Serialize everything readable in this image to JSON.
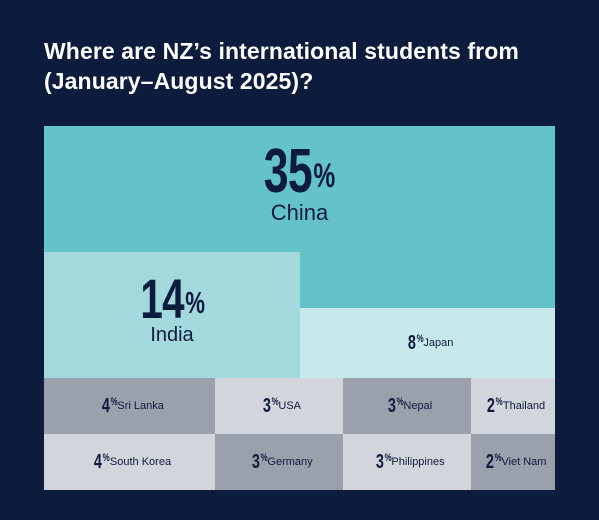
{
  "title": "Where are NZ’s international students from (January–August 2025)?",
  "chart_data": {
    "type": "treemap",
    "unit": "%",
    "items": [
      {
        "label": "China",
        "value": 35,
        "color": "#64c3c9"
      },
      {
        "label": "India",
        "value": 14,
        "color": "#a3d8dd"
      },
      {
        "label": "Japan",
        "value": 8,
        "color": "#c8e9ec"
      },
      {
        "label": "Sri Lanka",
        "value": 4,
        "color": "#9aa1ad"
      },
      {
        "label": "USA",
        "value": 3,
        "color": "#d3d5dc"
      },
      {
        "label": "Nepal",
        "value": 3,
        "color": "#9aa1ad"
      },
      {
        "label": "Thailand",
        "value": 2,
        "color": "#d3d5dc"
      },
      {
        "label": "South Korea",
        "value": 4,
        "color": "#d3d5dc"
      },
      {
        "label": "Germany",
        "value": 3,
        "color": "#9aa1ad"
      },
      {
        "label": "Philippines",
        "value": 3,
        "color": "#d3d5dc"
      },
      {
        "label": "Viet Nam",
        "value": 2,
        "color": "#9aa1ad"
      }
    ]
  }
}
